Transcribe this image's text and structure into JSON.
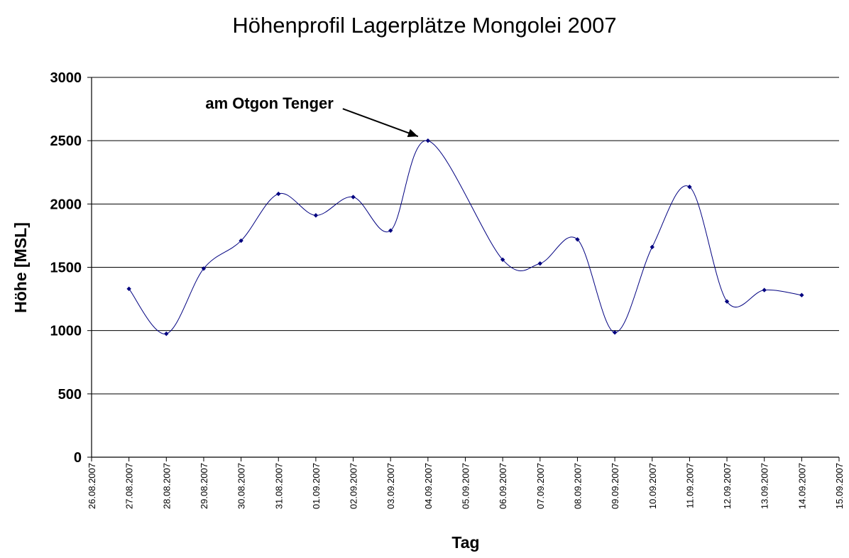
{
  "chart_data": {
    "type": "line",
    "title": "Höhenprofil Lagerplätze Mongolei 2007",
    "xlabel": "Tag",
    "ylabel": "Höhe [MSL]",
    "ylim": [
      0,
      3000
    ],
    "yticks": [
      0,
      500,
      1000,
      1500,
      2000,
      2500,
      3000
    ],
    "xticks": [
      "26.08.2007",
      "27.08.2007",
      "28.08.2007",
      "29.08.2007",
      "30.08.2007",
      "31.08.2007",
      "01.09.2007",
      "02.09.2007",
      "03.09.2007",
      "04.09.2007",
      "05.09.2007",
      "06.09.2007",
      "07.09.2007",
      "08.09.2007",
      "09.09.2007",
      "10.09.2007",
      "11.09.2007",
      "12.09.2007",
      "13.09.2007",
      "14.09.2007",
      "15.09.2007"
    ],
    "grid": "horizontal",
    "legend": "none",
    "smoothed": true,
    "line_color": "#000080",
    "series": [
      {
        "x": [
          "27.08.2007",
          "28.08.2007",
          "29.08.2007",
          "30.08.2007",
          "31.08.2007",
          "01.09.2007",
          "02.09.2007",
          "03.09.2007",
          "04.09.2007",
          "06.09.2007",
          "07.09.2007",
          "08.09.2007",
          "09.09.2007",
          "10.09.2007",
          "11.09.2007",
          "12.09.2007",
          "13.09.2007",
          "14.09.2007"
        ],
        "values": [
          1330,
          975,
          1490,
          1710,
          2080,
          1910,
          2055,
          1790,
          2500,
          1560,
          1530,
          1720,
          985,
          1660,
          2135,
          1230,
          1320,
          1280
        ]
      }
    ],
    "annotations": [
      {
        "text": "am Otgon Tenger",
        "x": "04.09.2007",
        "y": 2500
      }
    ]
  }
}
